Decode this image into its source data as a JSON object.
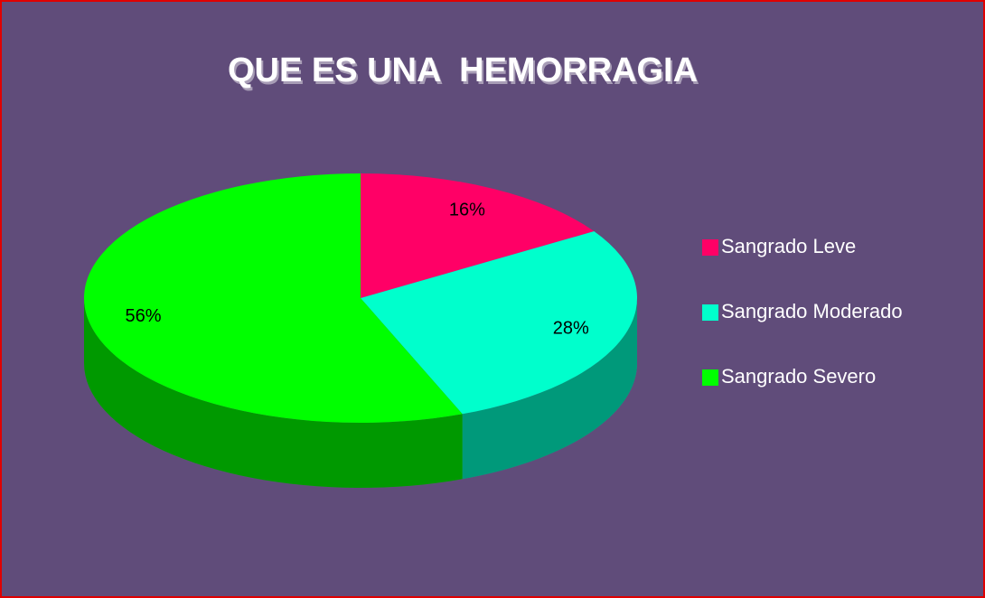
{
  "chart_data": {
    "type": "pie",
    "title": "QUE ES UNA  HEMORRAGIA",
    "categories": [
      "Sangrado Leve",
      "Sangrado Moderado",
      "Sangrado Severo"
    ],
    "values": [
      16,
      28,
      56
    ],
    "value_labels": [
      "16%",
      "28%",
      "56%"
    ],
    "colors": [
      "#ff0066",
      "#00ffcc",
      "#00ff00"
    ],
    "legend": "right"
  }
}
